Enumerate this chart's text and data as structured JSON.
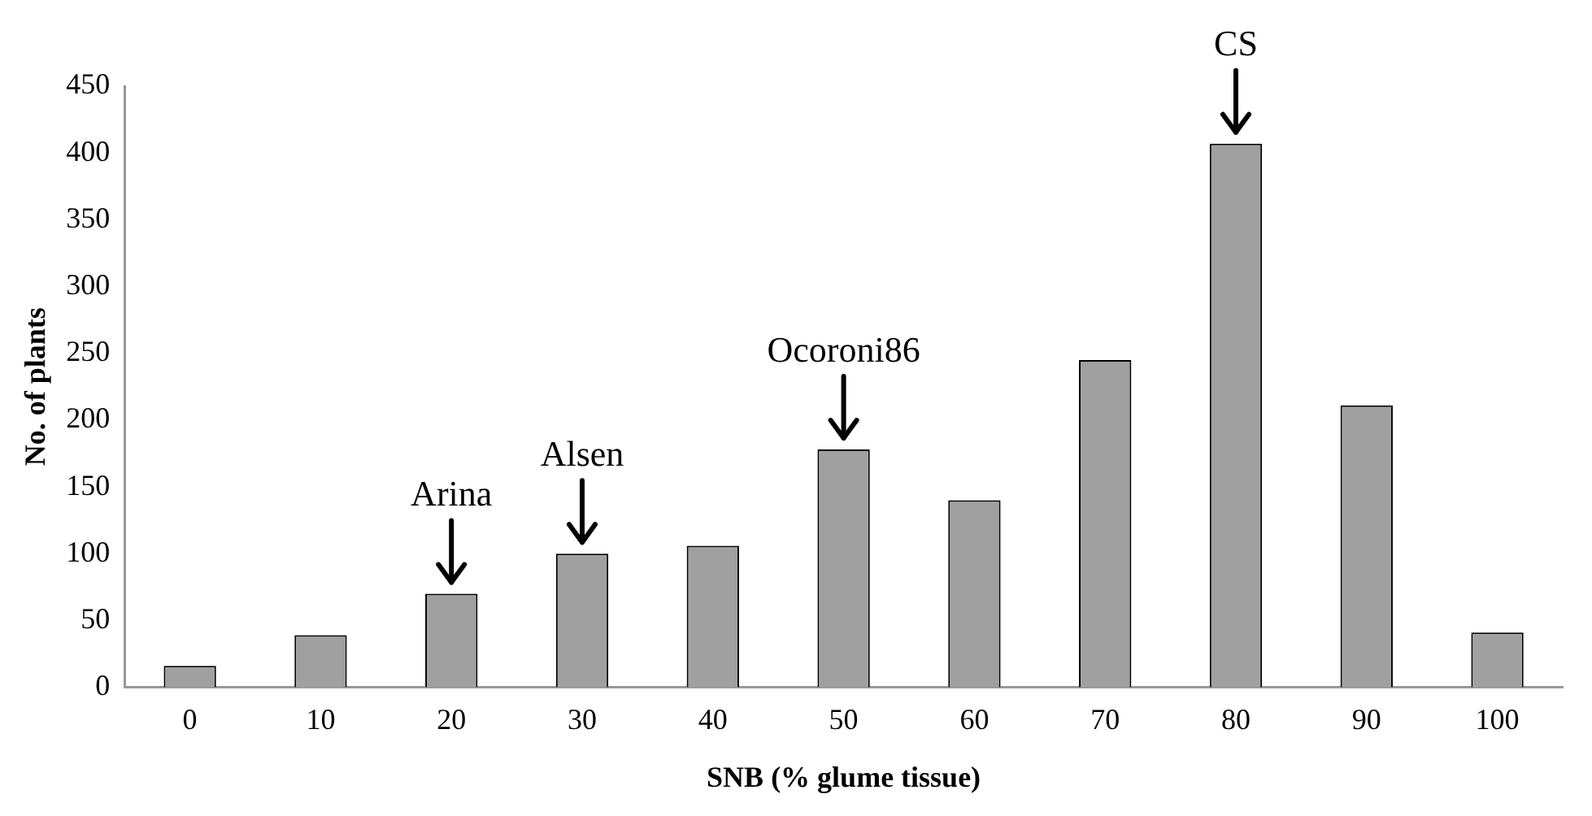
{
  "chart_data": {
    "type": "bar",
    "xlabel": "SNB (% glume tissue)",
    "ylabel": "No. of plants",
    "categories": [
      "0",
      "10",
      "20",
      "30",
      "40",
      "50",
      "60",
      "70",
      "80",
      "90",
      "100"
    ],
    "values": [
      16,
      39,
      70,
      100,
      106,
      178,
      140,
      245,
      407,
      211,
      41
    ],
    "color": "#a0a0a0",
    "ylim": [
      0,
      450
    ],
    "yticks": [
      0,
      50,
      100,
      150,
      200,
      250,
      300,
      350,
      400,
      450
    ],
    "grid": false,
    "legend": false,
    "annotations": [
      {
        "text": "Arina",
        "x": "20",
        "y": 70
      },
      {
        "text": "Alsen",
        "x": "30",
        "y": 100
      },
      {
        "text": "Ocoroni86",
        "x": "50",
        "y": 178
      },
      {
        "text": "CS",
        "x": "80",
        "y": 407
      }
    ]
  }
}
